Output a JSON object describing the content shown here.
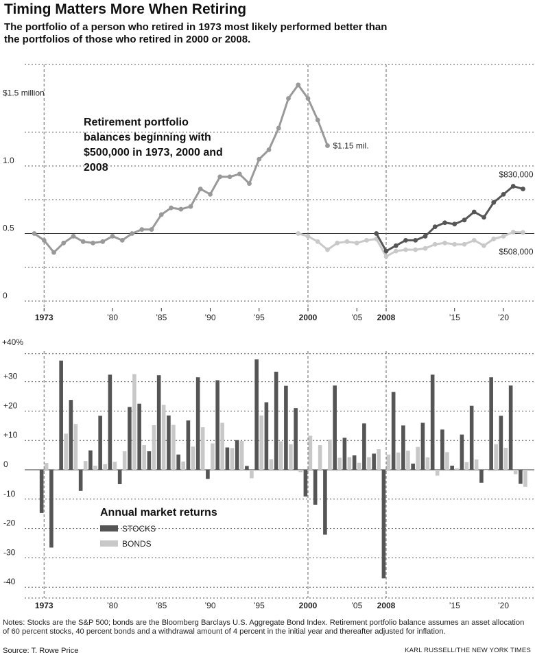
{
  "title": "Timing Matters More When Retiring",
  "subtitle": "The portfolio of a person who retired in 1973 most likely performed better than the portfolios of those who retired in 2000 or 2008.",
  "colors": {
    "p1973": "#999999",
    "p2000": "#c9c9c9",
    "p2008": "#555555",
    "stocks": "#555555",
    "bonds": "#c8c8c8",
    "grid": "#555555"
  },
  "chart_data": [
    {
      "type": "line",
      "title": "Retirement portfolio balances beginning with $500,000 in 1973, 2000 and 2008",
      "ylim": [
        0,
        1.7
      ],
      "xlim": [
        1972,
        2023
      ],
      "y_tick_labels": [
        {
          "v": 1.5,
          "label": "$1.5 million"
        },
        {
          "v": 1.0,
          "label": "1.0"
        },
        {
          "v": 0.5,
          "label": "0.5"
        },
        {
          "v": 0,
          "label": "0"
        }
      ],
      "y_gridlines": [
        1.25,
        1.0,
        0.75,
        0.5,
        0.25
      ],
      "series": [
        {
          "key": "p1973",
          "x": [
            1972,
            1973,
            1974,
            1975,
            1976,
            1977,
            1978,
            1979,
            1980,
            1981,
            1982,
            1983,
            1984,
            1985,
            1986,
            1987,
            1988,
            1989,
            1990,
            1991,
            1992,
            1993,
            1994,
            1995,
            1996,
            1997,
            1998,
            1999,
            2000,
            2001,
            2002
          ],
          "y": [
            0.5,
            0.45,
            0.36,
            0.43,
            0.48,
            0.44,
            0.43,
            0.44,
            0.48,
            0.45,
            0.5,
            0.53,
            0.53,
            0.64,
            0.69,
            0.68,
            0.7,
            0.83,
            0.79,
            0.92,
            0.92,
            0.94,
            0.87,
            1.05,
            1.12,
            1.28,
            1.5,
            1.6,
            1.5,
            1.34,
            1.15
          ],
          "end_label": "$1.15 mil."
        },
        {
          "key": "p2000",
          "x": [
            1999,
            2000,
            2001,
            2002,
            2003,
            2004,
            2005,
            2006,
            2007,
            2008,
            2009,
            2010,
            2011,
            2012,
            2013,
            2014,
            2015,
            2016,
            2017,
            2018,
            2019,
            2020,
            2021,
            2022
          ],
          "y": [
            0.5,
            0.48,
            0.44,
            0.38,
            0.43,
            0.44,
            0.43,
            0.45,
            0.46,
            0.33,
            0.37,
            0.38,
            0.38,
            0.39,
            0.42,
            0.43,
            0.42,
            0.42,
            0.45,
            0.41,
            0.46,
            0.48,
            0.51,
            0.508
          ],
          "end_label": "$508,000"
        },
        {
          "key": "p2008",
          "x": [
            2007,
            2008,
            2009,
            2010,
            2011,
            2012,
            2013,
            2014,
            2015,
            2016,
            2017,
            2018,
            2019,
            2020,
            2021,
            2022
          ],
          "y": [
            0.5,
            0.37,
            0.41,
            0.45,
            0.45,
            0.48,
            0.55,
            0.58,
            0.57,
            0.6,
            0.66,
            0.62,
            0.73,
            0.79,
            0.85,
            0.83
          ],
          "end_label": "$830,000"
        }
      ],
      "x_tick_labels": [
        {
          "x": 1973,
          "label": "1973",
          "bold": true
        },
        {
          "x": 1980,
          "label": "’80",
          "bold": false
        },
        {
          "x": 1985,
          "label": "’85",
          "bold": false
        },
        {
          "x": 1990,
          "label": "’90",
          "bold": false
        },
        {
          "x": 1995,
          "label": "’95",
          "bold": false
        },
        {
          "x": 2000,
          "label": "2000",
          "bold": true
        },
        {
          "x": 2005,
          "label": "’05",
          "bold": false
        },
        {
          "x": 2008,
          "label": "2008",
          "bold": true
        },
        {
          "x": 2015,
          "label": "’15",
          "bold": false
        },
        {
          "x": 2020,
          "label": "’20",
          "bold": false
        }
      ],
      "start_markers": [
        1973,
        2000,
        2008
      ]
    },
    {
      "type": "bar",
      "title": "Annual market returns",
      "ylim": [
        -40,
        40
      ],
      "xlim": [
        1972,
        2023
      ],
      "y_tick_labels": [
        {
          "v": 40,
          "label": "+40%"
        },
        {
          "v": 30,
          "label": "+30"
        },
        {
          "v": 20,
          "label": "+20"
        },
        {
          "v": 10,
          "label": "+10"
        },
        {
          "v": 0,
          "label": "0"
        },
        {
          "v": -10,
          "label": "-10"
        },
        {
          "v": -20,
          "label": "-20"
        },
        {
          "v": -30,
          "label": "-30"
        },
        {
          "v": -40,
          "label": "-40"
        }
      ],
      "categories": [
        1973,
        1974,
        1975,
        1976,
        1977,
        1978,
        1979,
        1980,
        1981,
        1982,
        1983,
        1984,
        1985,
        1986,
        1987,
        1988,
        1989,
        1990,
        1991,
        1992,
        1993,
        1994,
        1995,
        1996,
        1997,
        1998,
        1999,
        2000,
        2001,
        2002,
        2003,
        2004,
        2005,
        2006,
        2007,
        2008,
        2009,
        2010,
        2011,
        2012,
        2013,
        2014,
        2015,
        2016,
        2017,
        2018,
        2019,
        2020,
        2021,
        2022
      ],
      "series": [
        {
          "name": "STOCKS",
          "key": "stocks",
          "values": [
            -14.7,
            -26.5,
            37.2,
            23.8,
            -7.2,
            6.6,
            18.4,
            32.4,
            -4.9,
            21.4,
            22.5,
            6.3,
            32.2,
            18.5,
            5.2,
            16.8,
            31.5,
            -3.1,
            30.5,
            7.6,
            10.1,
            1.3,
            37.6,
            23.0,
            33.4,
            28.6,
            21.0,
            -9.1,
            -11.9,
            -22.1,
            28.7,
            10.9,
            4.9,
            15.8,
            5.5,
            -37.0,
            26.5,
            15.1,
            2.1,
            16.0,
            32.4,
            13.7,
            1.4,
            12.0,
            21.8,
            -4.4,
            31.5,
            18.4,
            28.7,
            -4.8
          ]
        },
        {
          "name": "BONDS",
          "key": "bonds",
          "values": [
            2.3,
            0.2,
            12.3,
            15.6,
            3.0,
            1.4,
            1.9,
            2.7,
            6.3,
            32.6,
            8.4,
            15.2,
            22.1,
            15.3,
            2.8,
            7.9,
            14.5,
            9.0,
            16.0,
            7.4,
            9.8,
            -2.9,
            18.5,
            3.6,
            9.7,
            8.7,
            -0.8,
            11.6,
            8.4,
            10.3,
            4.1,
            4.3,
            2.4,
            4.3,
            7.0,
            5.2,
            5.9,
            6.5,
            7.8,
            4.2,
            -2.0,
            6.0,
            0.5,
            2.6,
            3.5,
            0.0,
            8.7,
            7.5,
            -1.5,
            -5.8
          ]
        }
      ],
      "x_tick_labels": [
        {
          "x": 1973,
          "label": "1973",
          "bold": true
        },
        {
          "x": 1980,
          "label": "’80",
          "bold": false
        },
        {
          "x": 1985,
          "label": "’85",
          "bold": false
        },
        {
          "x": 1990,
          "label": "’90",
          "bold": false
        },
        {
          "x": 1995,
          "label": "’95",
          "bold": false
        },
        {
          "x": 2000,
          "label": "2000",
          "bold": true
        },
        {
          "x": 2005,
          "label": "’05",
          "bold": false
        },
        {
          "x": 2008,
          "label": "2008",
          "bold": true
        },
        {
          "x": 2015,
          "label": "’15",
          "bold": false
        },
        {
          "x": 2020,
          "label": "’20",
          "bold": false
        }
      ],
      "legend": "center-left"
    }
  ],
  "notes": "Notes: Stocks are the S&P 500; bonds are the Bloomberg Barclays U.S. Aggregate Bond Index. Retirement portfolio balance assumes an asset allocation of 60 percent stocks, 40 percent bonds and a withdrawal amount of 4 percent in the initial year and thereafter adjusted for inflation.",
  "source": "Source: T. Rowe Price",
  "credit": "KARL RUSSELL/THE NEW YORK TIMES"
}
